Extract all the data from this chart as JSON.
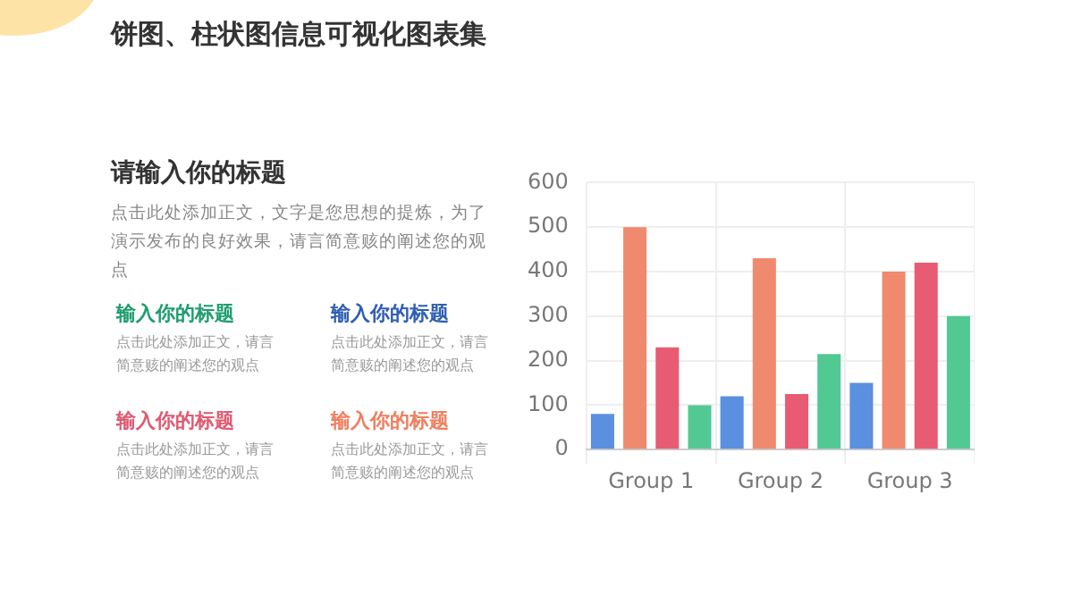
{
  "chart_data": {
    "type": "bar",
    "title": "饼图、柱状图信息可视化图表集",
    "subtitle": "请输入你的标题",
    "annotations": [
      "点击此处添加正文，文字是您思想的提炼，为了演示发布的良好效果，请言简意赅的阐述您的观点",
      "输入你的标题",
      "点击此处添加正文，请言简意赅的阐述您的观点",
      "输入你的标题",
      "点击此处添加正文，请言简意赅的阐述您的观点",
      "输入你的标题",
      "点击此处添加正文，请言简意赅的阐述您的观点",
      "输入你的标题",
      "点击此处添加正文，请言简意赅的阐述您的观点"
    ],
    "categories": [
      "Group 1",
      "Group 2",
      "Group 3"
    ],
    "series": [
      {
        "color": "#5b8fe0",
        "values": [
          80,
          120,
          150
        ]
      },
      {
        "color": "#ef8a6f",
        "values": [
          500,
          430,
          400
        ]
      },
      {
        "color": "#e85c73",
        "values": [
          230,
          125,
          420
        ]
      },
      {
        "color": "#52c993",
        "values": [
          100,
          215,
          300
        ]
      }
    ],
    "ylim": [
      0,
      600
    ],
    "yticks": [
      0,
      100,
      200,
      300,
      400,
      500,
      600
    ],
    "grid": true,
    "legend": false
  }
}
